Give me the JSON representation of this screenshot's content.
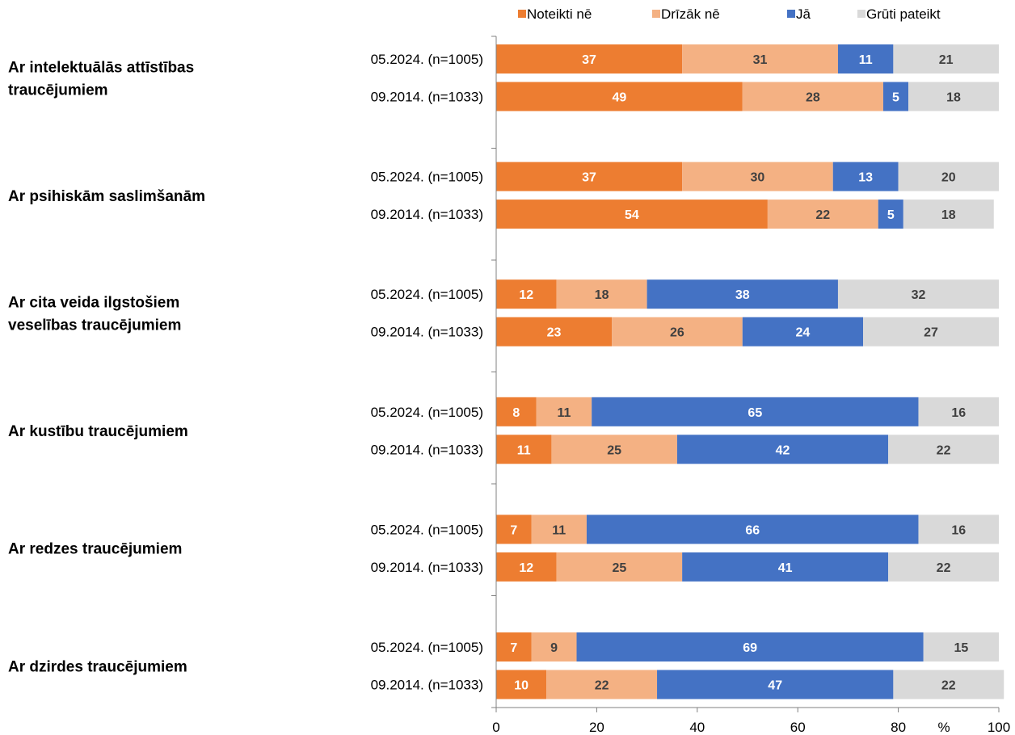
{
  "chart_data": {
    "type": "bar",
    "orientation": "horizontal",
    "stacked": true,
    "x_unit": "%",
    "xlim": [
      0,
      100
    ],
    "x_ticks": [
      "0",
      "20",
      "40",
      "60",
      "80",
      "100"
    ],
    "grid": false,
    "legend_position": "top",
    "series": [
      {
        "name": "Noteikti nē",
        "color": "#ED7D31"
      },
      {
        "name": "Drīzāk nē",
        "color": "#F4B183"
      },
      {
        "name": "Jā",
        "color": "#4472C4"
      },
      {
        "name": "Grūti pateikt",
        "color": "#D9D9D9"
      }
    ],
    "groups": [
      {
        "label_lines": [
          "Ar intelektuālās attīstības",
          "traucējumiem"
        ],
        "rows": [
          {
            "label": "05.2024. (n=1005)",
            "values": [
              37,
              31,
              11,
              21
            ]
          },
          {
            "label": "09.2014. (n=1033)",
            "values": [
              49,
              28,
              5,
              18
            ]
          }
        ]
      },
      {
        "label_lines": [
          "Ar psihiskām saslimšanām"
        ],
        "rows": [
          {
            "label": "05.2024. (n=1005)",
            "values": [
              37,
              30,
              13,
              20
            ]
          },
          {
            "label": "09.2014. (n=1033)",
            "values": [
              54,
              22,
              5,
              18
            ]
          }
        ]
      },
      {
        "label_lines": [
          "Ar cita veida ilgstošiem",
          "veselības traucējumiem"
        ],
        "rows": [
          {
            "label": "05.2024. (n=1005)",
            "values": [
              12,
              18,
              38,
              32
            ]
          },
          {
            "label": "09.2014. (n=1033)",
            "values": [
              23,
              26,
              24,
              27
            ]
          }
        ]
      },
      {
        "label_lines": [
          "Ar kustību traucējumiem"
        ],
        "rows": [
          {
            "label": "05.2024. (n=1005)",
            "values": [
              8,
              11,
              65,
              16
            ]
          },
          {
            "label": "09.2014. (n=1033)",
            "values": [
              11,
              25,
              42,
              22
            ]
          }
        ]
      },
      {
        "label_lines": [
          "Ar redzes traucējumiem"
        ],
        "rows": [
          {
            "label": "05.2024. (n=1005)",
            "values": [
              7,
              11,
              66,
              16
            ]
          },
          {
            "label": "09.2014. (n=1033)",
            "values": [
              12,
              25,
              41,
              22
            ]
          }
        ]
      },
      {
        "label_lines": [
          "Ar dzirdes traucējumiem"
        ],
        "rows": [
          {
            "label": "05.2024. (n=1005)",
            "values": [
              7,
              9,
              69,
              15
            ]
          },
          {
            "label": "09.2014. (n=1033)",
            "values": [
              10,
              22,
              47,
              22
            ]
          }
        ]
      }
    ]
  }
}
